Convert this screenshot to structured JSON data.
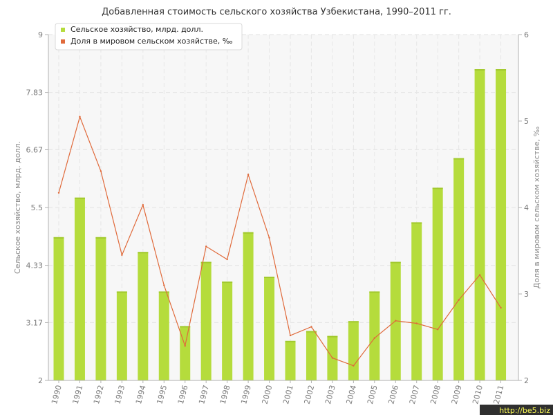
{
  "chart_data": {
    "type": "bar",
    "title": "Добавленная стоимость сельского хозяйства Узбекистана, 1990–2011 гг.",
    "categories": [
      "1990",
      "1991",
      "1992",
      "1993",
      "1994",
      "1995",
      "1996",
      "1997",
      "1998",
      "1999",
      "2000",
      "2001",
      "2002",
      "2003",
      "2004",
      "2005",
      "2006",
      "2007",
      "2008",
      "2009",
      "2010",
      "2011"
    ],
    "series": [
      {
        "name": "Сельское хозяйство, млрд. долл.",
        "type": "bar",
        "axis": "left",
        "color": "#b5dc3c",
        "values": [
          4.9,
          5.7,
          4.9,
          3.8,
          4.6,
          3.8,
          3.1,
          4.4,
          4.0,
          5.0,
          4.1,
          2.8,
          3.0,
          2.9,
          3.2,
          3.8,
          4.4,
          5.2,
          5.9,
          6.5,
          8.3,
          8.3
        ]
      },
      {
        "name": "Доля в мировом сельском хозяйстве, ‰",
        "type": "line",
        "axis": "right",
        "color": "#e06a3b",
        "values": [
          4.17,
          5.05,
          4.42,
          3.45,
          4.03,
          3.1,
          2.4,
          3.55,
          3.4,
          4.38,
          3.65,
          2.52,
          2.62,
          2.26,
          2.17,
          2.49,
          2.69,
          2.66,
          2.59,
          2.93,
          3.22,
          2.84
        ]
      }
    ],
    "ylabel": "Сельское хозяйство, млрд. долл.",
    "ylabel_right": "Доля в мировом сельском хозяйстве, ‰",
    "ylim": [
      2,
      9
    ],
    "ylim_right": [
      2,
      6
    ],
    "yticks": [
      "2",
      "3.17",
      "4.33",
      "5.5",
      "6.67",
      "7.83",
      "9"
    ],
    "yticks_right": [
      "2",
      "3",
      "4",
      "5",
      "6"
    ],
    "grid": true,
    "legend": "top-left"
  },
  "watermark": "http://be5.biz"
}
